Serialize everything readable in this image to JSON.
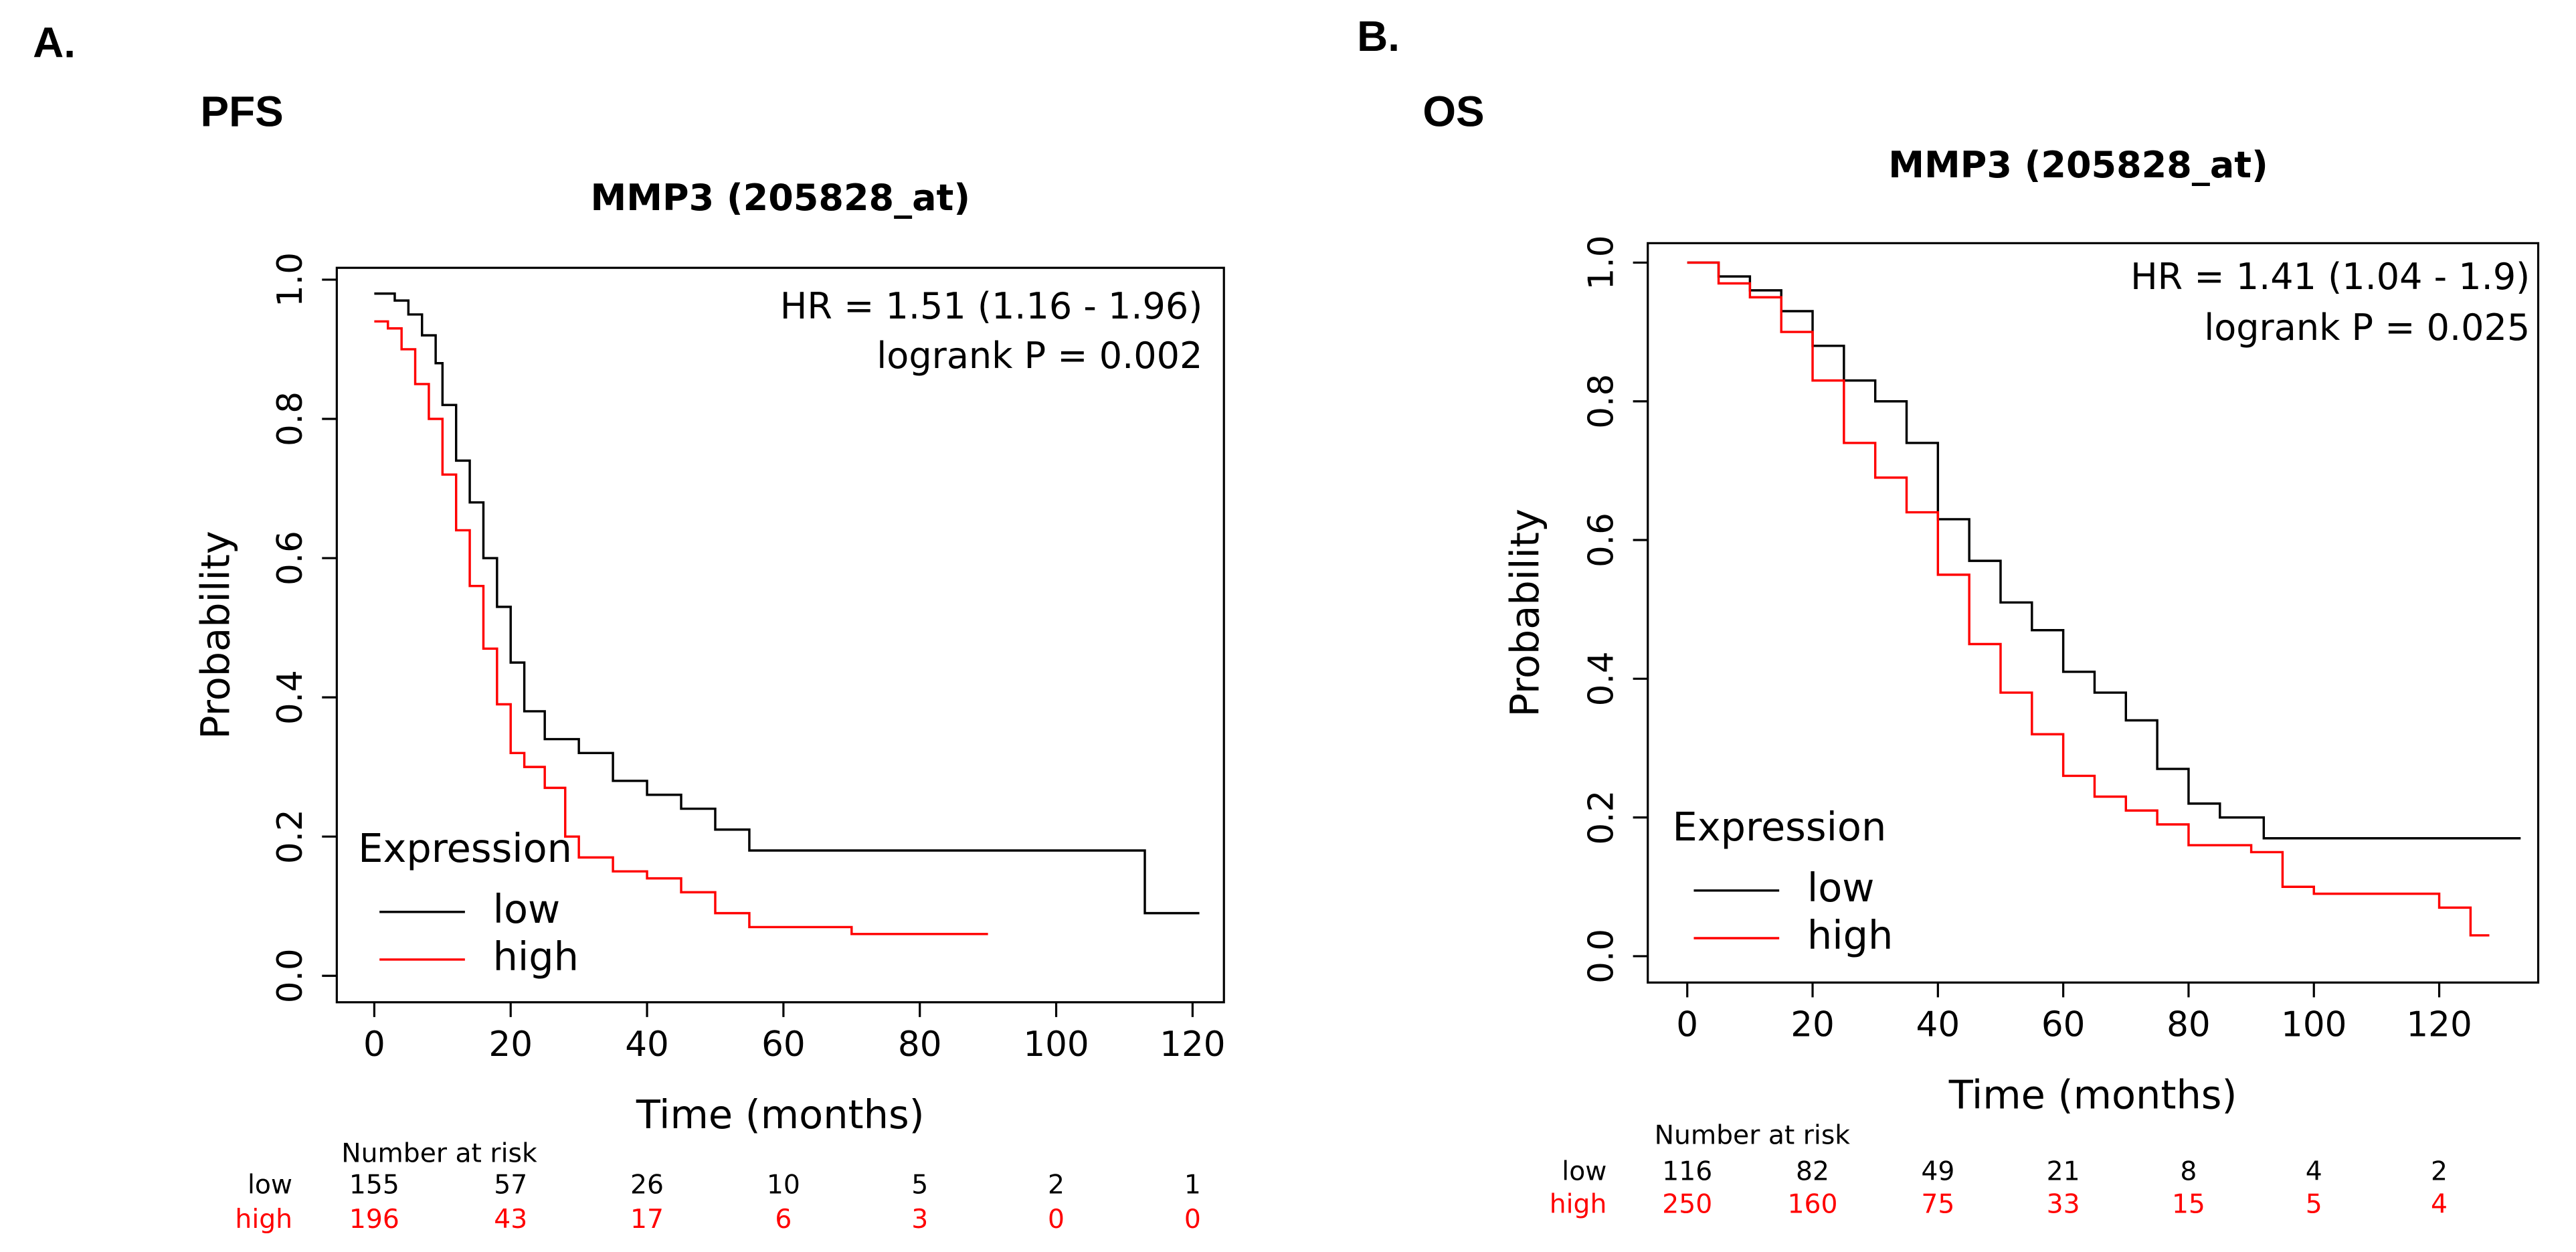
{
  "panels": [
    {
      "label": "A.",
      "endpoint": "PFS"
    },
    {
      "label": "B.",
      "endpoint": "OS"
    }
  ],
  "chart_data": [
    {
      "type": "line",
      "title": "MMP3 (205828_at)",
      "x_label": "Time (months)",
      "y_label": "Probability",
      "annotations": [
        "HR = 1.51 (1.16 - 1.96)",
        "logrank P = 0.002"
      ],
      "legend_title": "Expression",
      "legend": "bottom-left",
      "xlim": [
        -5.5,
        124.6
      ],
      "ylim": [
        -0.038,
        1.017
      ],
      "xticks": [
        0,
        20,
        40,
        60,
        80,
        100,
        120
      ],
      "yticks": [
        {
          "value": 0,
          "label": "0.0"
        },
        {
          "value": 0.2,
          "label": "0.2"
        },
        {
          "value": 0.4,
          "label": "0.4"
        },
        {
          "value": 0.6,
          "label": "0.6"
        },
        {
          "value": 0.8,
          "label": "0.8"
        },
        {
          "value": 1,
          "label": "1.0"
        }
      ],
      "series": [
        {
          "name": "low",
          "color": "#000000",
          "x": [
            0,
            3,
            5,
            7,
            9,
            10,
            12,
            14,
            16,
            18,
            20,
            22,
            25,
            30,
            35,
            40,
            45,
            50,
            55,
            60,
            92,
            113,
            121
          ],
          "values": [
            0.98,
            0.97,
            0.95,
            0.92,
            0.88,
            0.82,
            0.74,
            0.68,
            0.6,
            0.53,
            0.45,
            0.38,
            0.34,
            0.32,
            0.28,
            0.26,
            0.24,
            0.21,
            0.18,
            0.18,
            0.18,
            0.09,
            0.09
          ]
        },
        {
          "name": "high",
          "color": "#ff0000",
          "x": [
            0,
            2,
            4,
            6,
            8,
            10,
            12,
            14,
            16,
            18,
            20,
            22,
            25,
            28,
            30,
            35,
            40,
            45,
            50,
            55,
            60,
            70,
            75,
            90
          ],
          "values": [
            0.94,
            0.93,
            0.9,
            0.85,
            0.8,
            0.72,
            0.64,
            0.56,
            0.47,
            0.39,
            0.32,
            0.3,
            0.27,
            0.2,
            0.17,
            0.15,
            0.14,
            0.12,
            0.09,
            0.07,
            0.07,
            0.06,
            0.06,
            0.06
          ]
        }
      ],
      "risk_table": {
        "title": "Number at risk",
        "rows": [
          {
            "name": "low",
            "counts": [
              "155",
              "57",
              "26",
              "10",
              "5",
              "2",
              "1"
            ]
          },
          {
            "name": "high",
            "counts": [
              "196",
              "43",
              "17",
              "6",
              "3",
              "0",
              "0"
            ]
          }
        ]
      }
    },
    {
      "type": "line",
      "title": "MMP3 (205828_at)",
      "x_label": "Time (months)",
      "y_label": "Probability",
      "annotations": [
        "HR = 1.41 (1.04 - 1.9)",
        "logrank P = 0.025"
      ],
      "legend_title": "Expression",
      "legend": "bottom-left",
      "xlim": [
        -6.3,
        135.8
      ],
      "ylim": [
        -0.038,
        1.028
      ],
      "xticks": [
        0,
        20,
        40,
        60,
        80,
        100,
        120
      ],
      "yticks": [
        {
          "value": 0,
          "label": "0.0"
        },
        {
          "value": 0.2,
          "label": "0.2"
        },
        {
          "value": 0.4,
          "label": "0.4"
        },
        {
          "value": 0.6,
          "label": "0.6"
        },
        {
          "value": 0.8,
          "label": "0.8"
        },
        {
          "value": 1,
          "label": "1.0"
        }
      ],
      "series": [
        {
          "name": "low",
          "color": "#000000",
          "x": [
            0,
            5,
            10,
            15,
            20,
            25,
            30,
            35,
            40,
            45,
            50,
            55,
            60,
            65,
            70,
            75,
            80,
            85,
            92,
            100,
            133
          ],
          "values": [
            1.0,
            0.98,
            0.96,
            0.93,
            0.88,
            0.83,
            0.8,
            0.74,
            0.63,
            0.57,
            0.51,
            0.47,
            0.41,
            0.38,
            0.34,
            0.27,
            0.22,
            0.2,
            0.17,
            0.17,
            0.17
          ]
        },
        {
          "name": "high",
          "color": "#ff0000",
          "x": [
            0,
            5,
            10,
            15,
            20,
            25,
            30,
            35,
            40,
            45,
            50,
            55,
            60,
            65,
            70,
            75,
            80,
            90,
            95,
            100,
            110,
            120,
            125,
            128
          ],
          "values": [
            1.0,
            0.97,
            0.95,
            0.9,
            0.83,
            0.74,
            0.69,
            0.64,
            0.55,
            0.45,
            0.38,
            0.32,
            0.26,
            0.23,
            0.21,
            0.19,
            0.16,
            0.15,
            0.1,
            0.09,
            0.09,
            0.07,
            0.03,
            0.03
          ]
        }
      ],
      "risk_table": {
        "title": "Number at risk",
        "rows": [
          {
            "name": "low",
            "counts": [
              "116",
              "82",
              "49",
              "21",
              "8",
              "4",
              "2"
            ]
          },
          {
            "name": "high",
            "counts": [
              "250",
              "160",
              "75",
              "33",
              "15",
              "5",
              "4"
            ]
          }
        ]
      }
    }
  ]
}
